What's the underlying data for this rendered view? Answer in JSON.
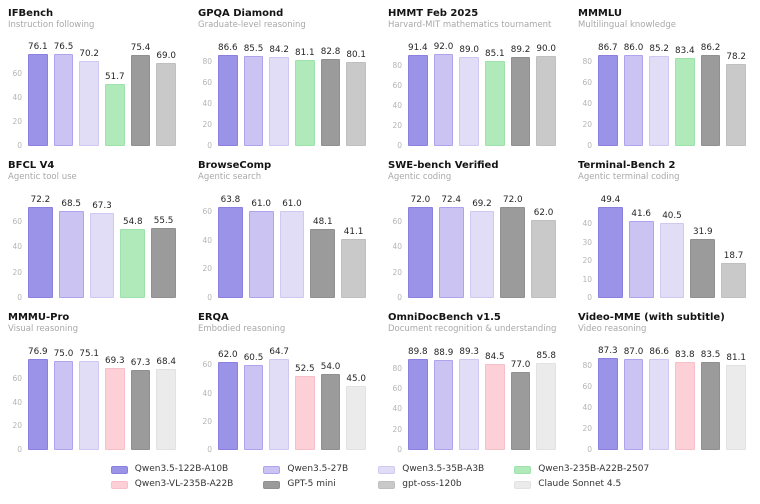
{
  "models": {
    "qwen35_122b": {
      "label": "Qwen3.5-122B-A10B",
      "color": "#9b93e8",
      "border": "#8a80e0"
    },
    "qwen35_27b": {
      "label": "Qwen3.5-27B",
      "color": "#cbc4f2",
      "border": "#aea4ed"
    },
    "qwen35_35b": {
      "label": "Qwen3.5-35B-A3B",
      "color": "#e1ddf7",
      "border": "#cfc9f2"
    },
    "qwen3_235b": {
      "label": "Qwen3-235B-A22B-2507",
      "color": "#b0eaba",
      "border": "#9de2aa"
    },
    "qwen3_vl": {
      "label": "Qwen3-VL-235B-A22B",
      "color": "#fcd0d6",
      "border": "#f7c0c9"
    },
    "gpt5_mini": {
      "label": "GPT-5 mini",
      "color": "#9b9b9b",
      "border": "#909090"
    },
    "gpt_oss": {
      "label": "gpt-oss-120b",
      "color": "#c9c9c9",
      "border": "#bfbfbf"
    },
    "sonnet45": {
      "label": "Claude Sonnet 4.5",
      "color": "#ebebeb",
      "border": "#e2e2e2"
    }
  },
  "legend_order": [
    "qwen35_122b",
    "qwen35_27b",
    "qwen35_35b",
    "qwen3_235b",
    "qwen3_vl",
    "gpt5_mini",
    "gpt_oss",
    "sonnet45"
  ],
  "chart_data": [
    {
      "type": "bar",
      "title": "IFBench",
      "subtitle": "Instruction following",
      "ylim": [
        0,
        79.5
      ],
      "yticks": [
        0,
        20,
        40,
        60
      ],
      "grid": false,
      "legend_position": "bottom-shared",
      "models": [
        "qwen35_122b",
        "qwen35_27b",
        "qwen35_35b",
        "qwen3_235b",
        "gpt5_mini",
        "gpt_oss"
      ],
      "values": [
        "76.1",
        "76.5",
        "70.2",
        "51.7",
        "75.4",
        "69.0"
      ]
    },
    {
      "type": "bar",
      "title": "GPQA Diamond",
      "subtitle": "Graduate-level reasoning",
      "ylim": [
        0,
        91
      ],
      "yticks": [
        0,
        20,
        40,
        60,
        80
      ],
      "grid": false,
      "legend_position": "bottom-shared",
      "models": [
        "qwen35_122b",
        "qwen35_27b",
        "qwen35_35b",
        "qwen3_235b",
        "gpt5_mini",
        "gpt_oss"
      ],
      "values": [
        "86.6",
        "85.5",
        "84.2",
        "81.1",
        "82.8",
        "80.1"
      ]
    },
    {
      "type": "bar",
      "title": "HMMT Feb 2025",
      "subtitle": "Harvard-MIT mathematics tournament",
      "ylim": [
        0,
        96.5
      ],
      "yticks": [
        0,
        20,
        40,
        60,
        80
      ],
      "grid": false,
      "legend_position": "bottom-shared",
      "models": [
        "qwen35_122b",
        "qwen35_27b",
        "qwen35_35b",
        "qwen3_235b",
        "gpt5_mini",
        "gpt_oss"
      ],
      "values": [
        "91.4",
        "92.0",
        "89.0",
        "85.1",
        "89.2",
        "90.0"
      ]
    },
    {
      "type": "bar",
      "title": "MMMLU",
      "subtitle": "Multilingual knowledge",
      "ylim": [
        0,
        91
      ],
      "yticks": [
        0,
        20,
        40,
        60,
        80
      ],
      "grid": false,
      "legend_position": "bottom-shared",
      "models": [
        "qwen35_122b",
        "qwen35_27b",
        "qwen35_35b",
        "qwen3_235b",
        "gpt5_mini",
        "gpt_oss"
      ],
      "values": [
        "86.7",
        "86.0",
        "85.2",
        "83.4",
        "86.2",
        "78.2"
      ]
    },
    {
      "type": "bar",
      "title": "BFCL V4",
      "subtitle": "Agentic tool use",
      "ylim": [
        0,
        76
      ],
      "yticks": [
        0,
        20,
        40,
        60
      ],
      "grid": false,
      "legend_position": "bottom-shared",
      "models": [
        "qwen35_122b",
        "qwen35_27b",
        "qwen35_35b",
        "qwen3_235b",
        "gpt5_mini"
      ],
      "values": [
        "72.2",
        "68.5",
        "67.3",
        "54.8",
        "55.5"
      ]
    },
    {
      "type": "bar",
      "title": "BrowseComp",
      "subtitle": "Agentic search",
      "ylim": [
        0,
        67
      ],
      "yticks": [
        0,
        20,
        40,
        60
      ],
      "grid": false,
      "legend_position": "bottom-shared",
      "models": [
        "qwen35_122b",
        "qwen35_27b",
        "qwen35_35b",
        "gpt5_mini",
        "gpt_oss"
      ],
      "values": [
        "63.8",
        "61.0",
        "61.0",
        "48.1",
        "41.1"
      ]
    },
    {
      "type": "bar",
      "title": "SWE-bench Verified",
      "subtitle": "Agentic coding",
      "ylim": [
        0,
        76
      ],
      "yticks": [
        0,
        20,
        40,
        60
      ],
      "grid": false,
      "legend_position": "bottom-shared",
      "models": [
        "qwen35_122b",
        "qwen35_27b",
        "qwen35_35b",
        "gpt5_mini",
        "gpt_oss"
      ],
      "values": [
        "72.0",
        "72.4",
        "69.2",
        "72.0",
        "62.0"
      ]
    },
    {
      "type": "bar",
      "title": "Terminal-Bench 2",
      "subtitle": "Agentic terminal coding",
      "ylim": [
        0,
        52
      ],
      "yticks": [
        0,
        10,
        20,
        30,
        40
      ],
      "grid": false,
      "legend_position": "bottom-shared",
      "models": [
        "qwen35_122b",
        "qwen35_27b",
        "qwen35_35b",
        "gpt5_mini",
        "gpt_oss"
      ],
      "values": [
        "49.4",
        "41.6",
        "40.5",
        "31.9",
        "18.7"
      ]
    },
    {
      "type": "bar",
      "title": "MMMU-Pro",
      "subtitle": "Visual reasoning",
      "ylim": [
        0,
        81
      ],
      "yticks": [
        0,
        20,
        40,
        60
      ],
      "grid": false,
      "legend_position": "bottom-shared",
      "models": [
        "qwen35_122b",
        "qwen35_27b",
        "qwen35_35b",
        "qwen3_vl",
        "gpt5_mini",
        "sonnet45"
      ],
      "values": [
        "76.9",
        "75.0",
        "75.1",
        "69.3",
        "67.3",
        "68.4"
      ]
    },
    {
      "type": "bar",
      "title": "ERQA",
      "subtitle": "Embodied reasoning",
      "ylim": [
        0,
        68
      ],
      "yticks": [
        0,
        20,
        40,
        60
      ],
      "grid": false,
      "legend_position": "bottom-shared",
      "models": [
        "qwen35_122b",
        "qwen35_27b",
        "qwen35_35b",
        "qwen3_vl",
        "gpt5_mini",
        "sonnet45"
      ],
      "values": [
        "62.0",
        "60.5",
        "64.7",
        "52.5",
        "54.0",
        "45.0"
      ]
    },
    {
      "type": "bar",
      "title": "OmniDocBench v1.5",
      "subtitle": "Document recognition & understanding",
      "ylim": [
        0,
        94.5
      ],
      "yticks": [
        0,
        20,
        40,
        60,
        80
      ],
      "grid": false,
      "legend_position": "bottom-shared",
      "models": [
        "qwen35_122b",
        "qwen35_27b",
        "qwen35_35b",
        "qwen3_vl",
        "gpt5_mini",
        "sonnet45"
      ],
      "values": [
        "89.8",
        "88.9",
        "89.3",
        "84.5",
        "77.0",
        "85.8"
      ]
    },
    {
      "type": "bar",
      "title": "Video-MME (with subtitle)",
      "subtitle": "Video reasoning",
      "ylim": [
        0,
        91.5
      ],
      "yticks": [
        0,
        20,
        40,
        60,
        80
      ],
      "grid": false,
      "legend_position": "bottom-shared",
      "models": [
        "qwen35_122b",
        "qwen35_27b",
        "qwen35_35b",
        "qwen3_vl",
        "gpt5_mini",
        "sonnet45"
      ],
      "values": [
        "87.3",
        "87.0",
        "86.6",
        "83.8",
        "83.5",
        "81.1"
      ]
    }
  ]
}
